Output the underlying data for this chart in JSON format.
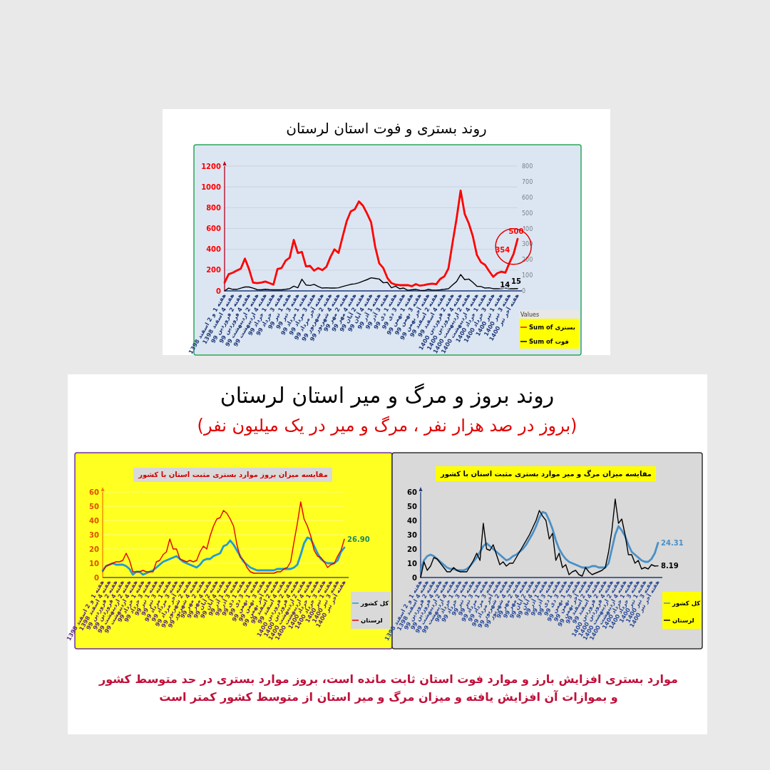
{
  "chart_data": [
    {
      "type": "line",
      "title": "روند بستری و فوت استان لرستان",
      "categories": [
        "هفته 1 و 2 اسفند 1398",
        null,
        "هفته 4 اسفند 1398",
        null,
        "هفته 2 فروردین 99",
        null,
        "هفته 4 فروردین 99",
        null,
        "هفته 2 اردیبهشت 99",
        null,
        "هفته 4 اردیبهشت 99",
        null,
        "هفته 1 خرداد 99",
        null,
        "هفته 3 خرداد 99",
        null,
        "هفته 1 تیر 99",
        null,
        "هفته 3 تیر 99",
        null,
        "هفته 1 مرداد 99",
        null,
        "هفته 3 مرداد 99",
        null,
        "هفته آخر مرداد 99",
        null,
        "هفته 2 شهریور 99",
        null,
        "هفته 4 شهریور 99",
        null,
        "هفته 2 مهر 99",
        null,
        "هفته 4 مهر 99",
        null,
        "هفته 2 آبان 99",
        null,
        "هفته 4 آبان 99",
        null,
        "هفته 1 آذر 99",
        null,
        "هفته 3 آذر 99",
        null,
        "هفته 1 دی 99",
        null,
        "هفته 3 دی 99",
        null,
        "هفته 1 بهمن 99",
        null,
        "هفته 3 بهمن 99",
        null,
        "هفته آخر بهمن 99",
        null,
        "هفته 2 اسفند 99",
        null,
        "هفته 4 اسفند 99",
        null,
        "هفته 2 فروردین 1400",
        null,
        "هفته 4 فروردین 1400",
        null,
        "هفته 2 اردیبهشت 1400",
        null,
        "هفته 4 اردیبهشت 1400",
        null,
        "هفته 1 خرداد 1400",
        null,
        "هفته 3 خرداد 1400",
        null,
        "هفته 1 تیر 1400",
        null,
        "هفته 3 تیر 1400",
        null,
        "هفته آخر تیر 1400"
      ],
      "series": [
        {
          "name": "Sum of بستری",
          "color": "#ff0000",
          "values": [
            80,
            160,
            175,
            195,
            215,
            310,
            210,
            80,
            75,
            80,
            90,
            75,
            60,
            210,
            220,
            290,
            320,
            490,
            365,
            375,
            235,
            240,
            195,
            220,
            200,
            230,
            325,
            400,
            365,
            520,
            670,
            765,
            785,
            860,
            820,
            745,
            660,
            425,
            265,
            220,
            125,
            75,
            60,
            55,
            55,
            55,
            45,
            65,
            50,
            55,
            65,
            70,
            65,
            115,
            140,
            215,
            460,
            695,
            965,
            740,
            650,
            525,
            345,
            275,
            250,
            190,
            135,
            170,
            185,
            175,
            270,
            354,
            500
          ],
          "value_labels": [
            null,
            null,
            null,
            null,
            null,
            null,
            null,
            null,
            null,
            null,
            null,
            null,
            null,
            null,
            null,
            null,
            null,
            null,
            null,
            null,
            null,
            null,
            null,
            null,
            null,
            null,
            null,
            null,
            null,
            null,
            null,
            null,
            null,
            null,
            null,
            null,
            null,
            null,
            null,
            null,
            null,
            null,
            null,
            null,
            null,
            null,
            null,
            null,
            null,
            null,
            null,
            null,
            null,
            null,
            null,
            null,
            null,
            null,
            null,
            null,
            null,
            null,
            null,
            null,
            null,
            null,
            null,
            null,
            null,
            null,
            null,
            "354",
            "500"
          ]
        },
        {
          "name": "Sum of فوت",
          "color": "#000000",
          "axis": "y2",
          "values": [
            0,
            18,
            10,
            10,
            18,
            25,
            25,
            18,
            8,
            7,
            10,
            8,
            7,
            7,
            7,
            10,
            14,
            30,
            20,
            75,
            38,
            35,
            42,
            28,
            18,
            20,
            18,
            18,
            20,
            28,
            35,
            42,
            45,
            52,
            62,
            72,
            84,
            80,
            76,
            52,
            55,
            20,
            30,
            14,
            18,
            4,
            7,
            10,
            4,
            2,
            10,
            5,
            5,
            7,
            10,
            14,
            38,
            60,
            105,
            72,
            76,
            55,
            30,
            28,
            18,
            20,
            14,
            14,
            15,
            18,
            14,
            14,
            15
          ],
          "value_labels": [
            null,
            null,
            null,
            null,
            null,
            null,
            null,
            null,
            null,
            null,
            null,
            null,
            null,
            null,
            null,
            null,
            null,
            null,
            null,
            null,
            null,
            null,
            null,
            null,
            null,
            null,
            null,
            null,
            null,
            null,
            null,
            null,
            null,
            null,
            null,
            null,
            null,
            null,
            null,
            null,
            null,
            null,
            null,
            null,
            null,
            null,
            null,
            null,
            null,
            null,
            null,
            null,
            null,
            null,
            null,
            null,
            null,
            null,
            null,
            null,
            null,
            null,
            null,
            null,
            null,
            null,
            null,
            null,
            null,
            null,
            null,
            "14",
            "15"
          ]
        }
      ],
      "ylim": [
        0,
        1200
      ],
      "yticks": [
        0,
        200,
        400,
        600,
        800,
        1000,
        1200
      ],
      "y2lim": [
        0,
        800
      ],
      "y2ticks": [
        0,
        100,
        200,
        300,
        400,
        500,
        600,
        700,
        800
      ],
      "grid": "y",
      "legend": "bottom right",
      "legend_title": "Values",
      "line_style": "solid"
    },
    {
      "type": "line",
      "title": "مقایسه میزان بروز موارد بستری مثبت استان با کشور",
      "annotations": [
        "روند بروز و مرگ و میر استان لرستان",
        "(بروز در صد هزار نفر ، مرگ و میر در یک میلیون نفر)"
      ],
      "categories": [
        "هفته 1 و 2 اسفند 1398",
        null,
        "هفته 4 اسفند 1398",
        null,
        "هفته 2 فروردین 99",
        null,
        "هفته 4 فروردین 99",
        null,
        "هفته 2 اردیبهشت 99",
        null,
        "هفته 4 اردیبهشت 99",
        null,
        "هفته 1 خرداد 99",
        null,
        "هفته 3 خرداد 99",
        null,
        "هفته 1 تیر 99",
        null,
        "هفته 3 تیر 99",
        null,
        "هفته 1 مرداد 99",
        null,
        "هفته 3 مرداد 99",
        null,
        "هفته آخر مرداد 99",
        null,
        "هفته 2 شهریور 99",
        null,
        "هفته 4 شهریور 99",
        null,
        "هفته 2 مهر 99",
        null,
        "هفته 4 مهر 99",
        null,
        "هفته 2 آبان 99",
        null,
        "هفته 4 آبان 99",
        null,
        "هفته 1 آذر 99",
        null,
        "هفته 3 آذر 99",
        null,
        "هفته 1 دی 99",
        null,
        "هفته 3 دی 99",
        null,
        "هفته 1 بهمن 99",
        null,
        "هفته 3 بهمن 99",
        null,
        "هفته آخر بهمن 99",
        null,
        "هفته 2 اسفند 99",
        null,
        "هفته 4 اسفند 99",
        null,
        "هفته 2 فروردین 1400",
        null,
        "هفته 4 فروردین 1400",
        null,
        "هفته 2 اردیبهشت 1400",
        null,
        "هفته 4 اردیبهشت 1400",
        null,
        "هفته 1 خرداد 1400",
        null,
        "هفته 3 خرداد 1400",
        null,
        "هفته 1 تیر 1400",
        null,
        "هفته 3 تیر 1400",
        null,
        "هفته آخر تیر 1400"
      ],
      "series": [
        {
          "name": "کل کشور",
          "color": "#1f9bd7",
          "values": [
            5,
            8,
            9,
            10,
            9,
            9,
            9,
            8,
            6,
            2,
            4,
            4,
            2,
            3,
            4,
            5,
            7,
            9,
            11,
            12,
            13,
            14,
            15,
            13,
            11,
            10,
            9,
            8,
            7,
            9,
            12,
            13,
            13,
            15,
            16,
            17,
            22,
            23,
            26,
            23,
            19,
            15,
            11,
            9,
            7,
            6,
            5,
            5,
            5,
            5,
            5,
            5,
            6,
            6,
            6,
            6,
            6,
            7,
            9,
            16,
            24,
            28,
            27,
            22,
            17,
            13,
            11,
            10,
            10,
            10,
            12,
            18,
            21
          ]
        },
        {
          "name": "لرستان",
          "color": "#e00000",
          "values": [
            4,
            8,
            9,
            10,
            11,
            11,
            12,
            17,
            12,
            4,
            4,
            4,
            5,
            4,
            4,
            4,
            11,
            12,
            16,
            18,
            27,
            20,
            20,
            13,
            12,
            11,
            12,
            11,
            12,
            18,
            22,
            20,
            29,
            36,
            41,
            42,
            47,
            45,
            41,
            36,
            23,
            14,
            12,
            7,
            4,
            3,
            3,
            3,
            3,
            3,
            3,
            3,
            4,
            4,
            6,
            7,
            11,
            25,
            38,
            53,
            41,
            36,
            29,
            19,
            15,
            14,
            11,
            7,
            9,
            10,
            15,
            19,
            26.9
          ],
          "value_labels": [
            null,
            null,
            null,
            null,
            null,
            null,
            null,
            null,
            null,
            null,
            null,
            null,
            null,
            null,
            null,
            null,
            null,
            null,
            null,
            null,
            null,
            null,
            null,
            null,
            null,
            null,
            null,
            null,
            null,
            null,
            null,
            null,
            null,
            null,
            null,
            null,
            null,
            null,
            null,
            null,
            null,
            null,
            null,
            null,
            null,
            null,
            null,
            null,
            null,
            null,
            null,
            null,
            null,
            null,
            null,
            null,
            null,
            null,
            null,
            null,
            null,
            null,
            null,
            null,
            null,
            null,
            null,
            null,
            null,
            null,
            null,
            null,
            "26.90"
          ]
        }
      ],
      "ylim": [
        0,
        60
      ],
      "yticks": [
        0,
        10,
        20,
        30,
        40,
        50,
        60
      ],
      "grid": "y",
      "legend": "bottom right",
      "line_style": "solid"
    },
    {
      "type": "line",
      "title": "مقایسه میزان مرگ و میر موارد بستری مثبت استان با کشور",
      "annotations": [
        "موارد بستری افزایش بارز و موارد فوت استان ثابت مانده است، بروز موارد بستری در حد متوسط کشور و بموازات آن افزایش یافته و میزان مرگ و میر استان از متوسط کشور کمتر است"
      ],
      "categories": [
        "هفته 1 و 2 اسفند 1398",
        null,
        "هفته 4 اسفند 1398",
        null,
        "هفته 2 فروردین 99",
        null,
        "هفته 4 فروردین 99",
        null,
        "هفته 2 اردیبهشت 99",
        null,
        "هفته 4 اردیبهشت 99",
        null,
        "هفته 1 خرداد 99",
        null,
        "هفته 3 خرداد 99",
        null,
        "هفته 1 تیر 99",
        null,
        "هفته 3 تیر 99",
        null,
        "هفته 1 مرداد 99",
        null,
        "هفته 3 مرداد 99",
        null,
        "هفته آخر مرداد 99",
        null,
        "هفته 2 شهریور 99",
        null,
        "هفته 4 شهریور 99",
        null,
        "هفته 2 مهر 99",
        null,
        "هفته 4 مهر 99",
        null,
        "هفته 2 آبان 99",
        null,
        "هفته 4 آبان 99",
        null,
        "هفته 1 آذر 99",
        null,
        "هفته 3 آذر 99",
        null,
        "هفته 1 دی 99",
        null,
        "هفته 3 دی 99",
        null,
        "هفته 1 بهمن 99",
        null,
        "هفته 3 بهمن 99",
        null,
        "هفته آخر بهمن 99",
        null,
        "هفته 2 اسفند 99",
        null,
        "هفته 4 اسفند 99",
        null,
        "هفته 2 فروردین 1400",
        null,
        "هفته 4 فروردین 1400",
        null,
        "هفته 2 اردیبهشت 1400",
        null,
        "هفته 4 اردیبهشت 1400",
        null,
        "هفته 1 خرداد 1400",
        null,
        "هفته 3 خرداد 1400",
        null,
        "هفته 1 تیر 1400",
        null,
        "هفته 3 تیر 1400",
        null,
        "هفته آخر تیر 1400"
      ],
      "series": [
        {
          "name": "کل کشور",
          "color": "#4a90c8",
          "values": [
            5,
            12,
            15,
            16,
            15,
            13,
            11,
            9,
            7,
            6,
            6,
            5,
            5,
            5,
            6,
            8,
            11,
            14,
            18,
            22,
            24,
            22,
            20,
            18,
            16,
            14,
            12,
            13,
            15,
            16,
            18,
            20,
            23,
            27,
            31,
            36,
            42,
            46,
            45,
            40,
            34,
            26,
            20,
            16,
            13,
            11,
            10,
            9,
            8,
            7,
            7,
            7,
            8,
            8,
            7,
            7,
            7,
            10,
            20,
            30,
            36,
            33,
            29,
            23,
            18,
            16,
            14,
            12,
            11,
            11,
            13,
            17,
            24.31
          ],
          "value_labels": [
            null,
            null,
            null,
            null,
            null,
            null,
            null,
            null,
            null,
            null,
            null,
            null,
            null,
            null,
            null,
            null,
            null,
            null,
            null,
            null,
            null,
            null,
            null,
            null,
            null,
            null,
            null,
            null,
            null,
            null,
            null,
            null,
            null,
            null,
            null,
            null,
            null,
            null,
            null,
            null,
            null,
            null,
            null,
            null,
            null,
            null,
            null,
            null,
            null,
            null,
            null,
            null,
            null,
            null,
            null,
            null,
            null,
            null,
            null,
            null,
            null,
            null,
            null,
            null,
            null,
            null,
            null,
            null,
            null,
            null,
            null,
            null,
            "24.31"
          ]
        },
        {
          "name": "لرستان",
          "color": "#000000",
          "values": [
            0,
            11,
            5,
            8,
            14,
            13,
            10,
            7,
            4,
            4,
            7,
            5,
            4,
            4,
            4,
            8,
            12,
            17,
            12,
            38,
            20,
            19,
            23,
            16,
            9,
            11,
            8,
            10,
            10,
            14,
            18,
            22,
            26,
            30,
            35,
            40,
            47,
            43,
            40,
            27,
            31,
            12,
            17,
            7,
            9,
            2,
            4,
            5,
            2,
            1,
            7,
            4,
            2,
            3,
            4,
            5,
            7,
            18,
            33,
            55,
            38,
            41,
            30,
            16,
            16,
            10,
            12,
            6,
            7,
            6,
            9,
            8,
            8.19
          ],
          "value_labels": [
            null,
            null,
            null,
            null,
            null,
            null,
            null,
            null,
            null,
            null,
            null,
            null,
            null,
            null,
            null,
            null,
            null,
            null,
            null,
            null,
            null,
            null,
            null,
            null,
            null,
            null,
            null,
            null,
            null,
            null,
            null,
            null,
            null,
            null,
            null,
            null,
            null,
            null,
            null,
            null,
            null,
            null,
            null,
            null,
            null,
            null,
            null,
            null,
            null,
            null,
            null,
            null,
            null,
            null,
            null,
            null,
            null,
            null,
            null,
            null,
            null,
            null,
            null,
            null,
            null,
            null,
            null,
            null,
            null,
            null,
            null,
            null,
            "8.19"
          ]
        }
      ],
      "ylim": [
        0,
        60
      ],
      "yticks": [
        0,
        10,
        20,
        30,
        40,
        50,
        60
      ],
      "legend": "bottom right",
      "line_style": "solid"
    }
  ]
}
